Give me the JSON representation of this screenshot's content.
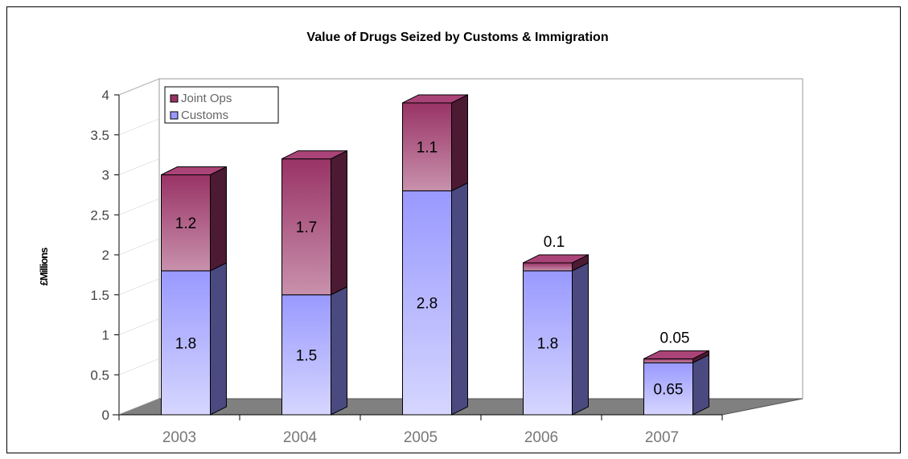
{
  "chart_data": {
    "type": "bar",
    "stacked": true,
    "three_d": true,
    "title": "Value of Drugs Seized by Customs & Immigration",
    "xlabel": "",
    "ylabel": "£Millions",
    "categories": [
      "2003",
      "2004",
      "2005",
      "2006",
      "2007"
    ],
    "ylim": [
      0,
      4
    ],
    "yticks": [
      "0",
      "0.5",
      "1",
      "1.5",
      "2",
      "2.5",
      "3",
      "3.5",
      "4"
    ],
    "series": [
      {
        "name": "Customs",
        "values": [
          1.8,
          1.5,
          2.8,
          1.8,
          0.65
        ],
        "labels": [
          "1.8",
          "1.5",
          "2.8",
          "1.8",
          "0.65"
        ],
        "color": "#9999ff"
      },
      {
        "name": "Joint Ops",
        "values": [
          1.2,
          1.7,
          1.1,
          0.1,
          0.05
        ],
        "labels": [
          "1.2",
          "1.7",
          "1.1",
          "0.1",
          "0.05"
        ],
        "color": "#993366"
      }
    ],
    "legend": {
      "position": "top-left"
    },
    "floor_color": "#808080"
  }
}
